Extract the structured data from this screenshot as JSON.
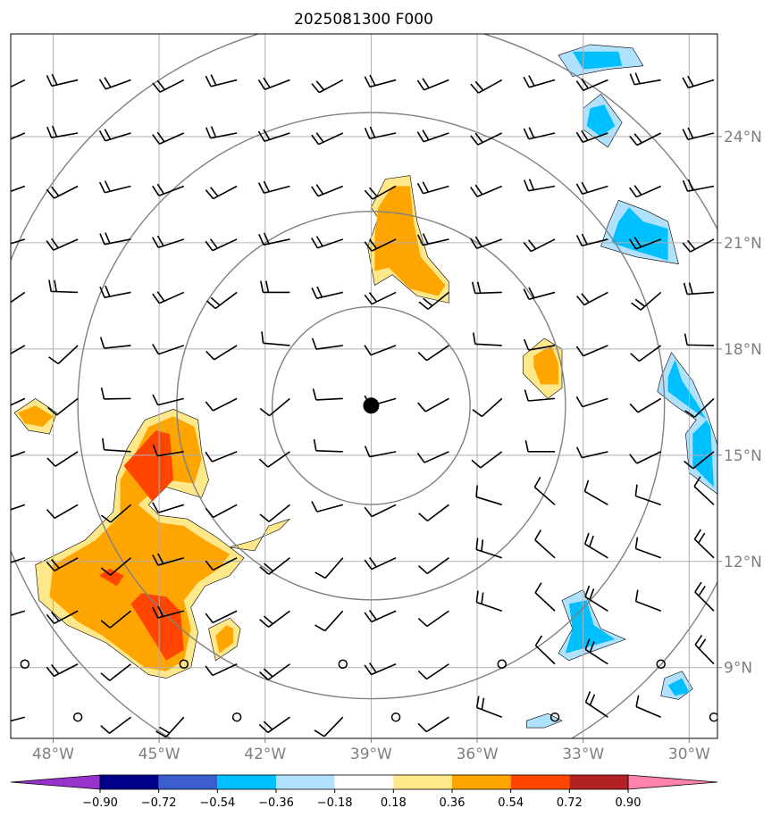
{
  "chart_data": {
    "type": "contour-map",
    "title": "2025081300 F000",
    "x_ticks": [
      {
        "lon": -48,
        "label": "48°W"
      },
      {
        "lon": -45,
        "label": "45°W"
      },
      {
        "lon": -42,
        "label": "42°W"
      },
      {
        "lon": -39,
        "label": "39°W"
      },
      {
        "lon": -36,
        "label": "36°W"
      },
      {
        "lon": -33,
        "label": "33°W"
      },
      {
        "lon": -30,
        "label": "30°W"
      }
    ],
    "y_ticks": [
      {
        "lat": 9,
        "label": "9°N"
      },
      {
        "lat": 12,
        "label": "12°N"
      },
      {
        "lat": 15,
        "label": "15°N"
      },
      {
        "lat": 18,
        "label": "18°N"
      },
      {
        "lat": 21,
        "label": "21°N"
      },
      {
        "lat": 24,
        "label": "24°N"
      }
    ],
    "lon_range": [
      -49.2,
      -29.2
    ],
    "lat_range": [
      7.0,
      26.9
    ],
    "grid": true,
    "center": {
      "lon": -39.0,
      "lat": 16.4
    },
    "range_rings_deg": [
      2.8,
      5.5,
      8.3,
      11.0
    ],
    "colorbar": {
      "levels": [
        "−0.90",
        "−0.72",
        "−0.54",
        "−0.36",
        "−0.18",
        "0.18",
        "0.36",
        "0.54",
        "0.72",
        "0.90"
      ],
      "colors": [
        "#9932cc",
        "#00008b",
        "#3a5fcd",
        "#00bfff",
        "#b0e2ff",
        "#ffffff",
        "#ffe88a",
        "#ffa500",
        "#ff4500",
        "#b22222",
        "#ff82ab"
      ],
      "extend": "both"
    },
    "regions": [
      {
        "level": 0.18,
        "color": "#ffe88a",
        "points": [
          [
            -46.5,
            9.7
          ],
          [
            -45.3,
            8.8
          ],
          [
            -44.8,
            8.7
          ],
          [
            -44.1,
            9.0
          ],
          [
            -43.9,
            10.0
          ],
          [
            -44.1,
            10.7
          ],
          [
            -43.7,
            11.3
          ],
          [
            -43.0,
            11.6
          ],
          [
            -42.6,
            12.1
          ],
          [
            -43.4,
            12.7
          ],
          [
            -44.2,
            13.2
          ],
          [
            -45.0,
            13.3
          ],
          [
            -45.3,
            13.6
          ],
          [
            -44.8,
            14.1
          ],
          [
            -43.8,
            13.8
          ],
          [
            -43.6,
            14.3
          ],
          [
            -43.8,
            15.1
          ],
          [
            -43.9,
            16.0
          ],
          [
            -44.6,
            16.3
          ],
          [
            -45.4,
            16.0
          ],
          [
            -45.9,
            15.2
          ],
          [
            -46.2,
            14.4
          ],
          [
            -46.3,
            13.4
          ],
          [
            -47.1,
            12.6
          ],
          [
            -48.5,
            11.9
          ],
          [
            -48.4,
            10.9
          ],
          [
            -47.6,
            10.2
          ]
        ]
      },
      {
        "level": 0.36,
        "color": "#ffa500",
        "points": [
          [
            -46.6,
            9.9
          ],
          [
            -45.4,
            9.0
          ],
          [
            -44.8,
            8.9
          ],
          [
            -44.3,
            9.2
          ],
          [
            -44.1,
            10.1
          ],
          [
            -44.3,
            10.9
          ],
          [
            -43.9,
            11.4
          ],
          [
            -43.3,
            11.8
          ],
          [
            -43.0,
            12.2
          ],
          [
            -43.7,
            12.6
          ],
          [
            -44.3,
            13.0
          ],
          [
            -45.0,
            13.1
          ],
          [
            -45.6,
            13.6
          ],
          [
            -44.8,
            14.3
          ],
          [
            -44.0,
            14.2
          ],
          [
            -43.8,
            14.9
          ],
          [
            -44.0,
            15.8
          ],
          [
            -44.6,
            16.1
          ],
          [
            -45.3,
            15.8
          ],
          [
            -45.7,
            15.0
          ],
          [
            -46.1,
            14.3
          ],
          [
            -46.1,
            13.3
          ],
          [
            -46.8,
            12.6
          ],
          [
            -48.0,
            11.9
          ],
          [
            -48.1,
            11.0
          ],
          [
            -47.3,
            10.3
          ]
        ]
      },
      {
        "level": 0.54,
        "color": "#ff4500",
        "points": [
          [
            -45.8,
            10.8
          ],
          [
            -44.8,
            9.2
          ],
          [
            -44.3,
            9.5
          ],
          [
            -44.4,
            10.6
          ],
          [
            -44.8,
            11.0
          ],
          [
            -45.5,
            11.1
          ]
        ]
      },
      {
        "level": 0.54,
        "color": "#ff4500",
        "points": [
          [
            -46.0,
            14.7
          ],
          [
            -45.2,
            13.7
          ],
          [
            -44.6,
            14.3
          ],
          [
            -44.7,
            15.6
          ],
          [
            -45.1,
            15.7
          ]
        ]
      },
      {
        "level": 0.54,
        "color": "#ff4500",
        "points": [
          [
            -46.7,
            11.6
          ],
          [
            -46.2,
            11.3
          ],
          [
            -46.0,
            11.6
          ],
          [
            -46.4,
            11.8
          ]
        ]
      },
      {
        "level": 0.18,
        "color": "#ffe88a",
        "points": [
          [
            -49.1,
            16.2
          ],
          [
            -48.5,
            16.6
          ],
          [
            -47.9,
            16.2
          ],
          [
            -48.1,
            15.6
          ],
          [
            -48.7,
            15.7
          ]
        ]
      },
      {
        "level": 0.36,
        "color": "#ffa500",
        "points": [
          [
            -49.0,
            16.2
          ],
          [
            -48.5,
            16.4
          ],
          [
            -48.0,
            16.1
          ],
          [
            -48.3,
            15.8
          ],
          [
            -48.8,
            15.9
          ]
        ]
      },
      {
        "level": 0.18,
        "color": "#ffe88a",
        "points": [
          [
            -43.0,
            12.4
          ],
          [
            -42.3,
            12.6
          ],
          [
            -41.6,
            12.9
          ],
          [
            -41.3,
            13.2
          ],
          [
            -41.9,
            13.0
          ],
          [
            -42.3,
            12.3
          ]
        ]
      },
      {
        "level": 0.18,
        "color": "#ffe88a",
        "points": [
          [
            -43.4,
            9.2
          ],
          [
            -42.8,
            9.6
          ],
          [
            -42.7,
            10.1
          ],
          [
            -43.0,
            10.4
          ],
          [
            -43.6,
            10.1
          ]
        ]
      },
      {
        "level": 0.36,
        "color": "#ffa500",
        "points": [
          [
            -43.3,
            9.4
          ],
          [
            -42.9,
            9.7
          ],
          [
            -42.9,
            10.1
          ],
          [
            -43.1,
            10.2
          ],
          [
            -43.4,
            9.9
          ]
        ]
      },
      {
        "level": 0.18,
        "color": "#ffe88a",
        "points": [
          [
            -39.0,
            22.0
          ],
          [
            -38.6,
            22.8
          ],
          [
            -37.9,
            22.9
          ],
          [
            -37.7,
            21.6
          ],
          [
            -37.4,
            20.6
          ],
          [
            -36.8,
            19.9
          ],
          [
            -36.8,
            19.3
          ],
          [
            -37.7,
            19.5
          ],
          [
            -38.4,
            20.1
          ],
          [
            -38.9,
            19.8
          ],
          [
            -39.1,
            20.9
          ],
          [
            -38.8,
            21.7
          ]
        ]
      },
      {
        "level": 0.36,
        "color": "#ffa500",
        "points": [
          [
            -38.8,
            22.0
          ],
          [
            -38.4,
            22.6
          ],
          [
            -37.9,
            22.6
          ],
          [
            -37.8,
            21.6
          ],
          [
            -37.6,
            20.6
          ],
          [
            -36.9,
            19.8
          ],
          [
            -37.1,
            19.5
          ],
          [
            -37.9,
            19.7
          ],
          [
            -38.5,
            20.3
          ],
          [
            -38.9,
            20.2
          ],
          [
            -38.9,
            21.2
          ]
        ]
      },
      {
        "level": 0.18,
        "color": "#ffe88a",
        "points": [
          [
            -34.7,
            17.8
          ],
          [
            -34.1,
            18.3
          ],
          [
            -33.6,
            18.0
          ],
          [
            -33.6,
            16.9
          ],
          [
            -34.0,
            16.6
          ],
          [
            -34.7,
            17.3
          ]
        ]
      },
      {
        "level": 0.36,
        "color": "#ffa500",
        "points": [
          [
            -34.4,
            17.8
          ],
          [
            -33.9,
            18.1
          ],
          [
            -33.7,
            17.6
          ],
          [
            -33.7,
            17.0
          ],
          [
            -34.2,
            17.0
          ],
          [
            -34.4,
            17.5
          ]
        ]
      },
      {
        "level": -0.18,
        "color": "#b0e2ff",
        "points": [
          [
            -33.7,
            26.3
          ],
          [
            -32.8,
            26.6
          ],
          [
            -31.6,
            26.5
          ],
          [
            -31.3,
            26.0
          ],
          [
            -32.3,
            25.9
          ],
          [
            -33.3,
            25.7
          ]
        ]
      },
      {
        "level": -0.36,
        "color": "#00bfff",
        "points": [
          [
            -33.3,
            26.4
          ],
          [
            -32.0,
            26.4
          ],
          [
            -31.9,
            26.0
          ],
          [
            -33.0,
            25.9
          ]
        ]
      },
      {
        "level": -0.18,
        "color": "#b0e2ff",
        "points": [
          [
            -33.0,
            24.8
          ],
          [
            -32.5,
            25.2
          ],
          [
            -31.9,
            24.4
          ],
          [
            -32.3,
            23.7
          ],
          [
            -33.0,
            24.2
          ]
        ]
      },
      {
        "level": -0.36,
        "color": "#00bfff",
        "points": [
          [
            -32.8,
            24.8
          ],
          [
            -32.4,
            24.9
          ],
          [
            -32.1,
            24.3
          ],
          [
            -32.5,
            24.0
          ],
          [
            -32.9,
            24.3
          ]
        ]
      },
      {
        "level": -0.18,
        "color": "#b0e2ff",
        "points": [
          [
            -32.3,
            21.5
          ],
          [
            -32.0,
            22.2
          ],
          [
            -31.2,
            21.9
          ],
          [
            -30.6,
            21.6
          ],
          [
            -30.3,
            20.4
          ],
          [
            -31.5,
            20.6
          ],
          [
            -32.5,
            20.9
          ]
        ]
      },
      {
        "level": -0.36,
        "color": "#00bfff",
        "points": [
          [
            -32.0,
            21.6
          ],
          [
            -31.7,
            22.0
          ],
          [
            -31.3,
            21.6
          ],
          [
            -30.6,
            21.4
          ],
          [
            -30.6,
            20.5
          ],
          [
            -31.6,
            20.8
          ],
          [
            -32.2,
            21.0
          ]
        ]
      },
      {
        "level": -0.18,
        "color": "#b0e2ff",
        "points": [
          [
            -30.8,
            17.2
          ],
          [
            -30.5,
            17.9
          ],
          [
            -29.9,
            17.1
          ],
          [
            -29.5,
            16.2
          ],
          [
            -29.2,
            15.3
          ],
          [
            -29.2,
            13.9
          ],
          [
            -30.0,
            14.5
          ],
          [
            -30.1,
            15.6
          ],
          [
            -29.8,
            16.0
          ],
          [
            -30.4,
            16.4
          ],
          [
            -30.9,
            16.8
          ]
        ]
      },
      {
        "level": -0.36,
        "color": "#00bfff",
        "points": [
          [
            -30.6,
            17.2
          ],
          [
            -30.4,
            17.7
          ],
          [
            -30.2,
            17.1
          ],
          [
            -29.8,
            16.5
          ],
          [
            -29.4,
            15.8
          ],
          [
            -29.3,
            14.1
          ],
          [
            -29.9,
            14.7
          ],
          [
            -29.9,
            15.6
          ],
          [
            -29.5,
            16.0
          ],
          [
            -30.2,
            16.5
          ],
          [
            -30.6,
            16.8
          ]
        ]
      },
      {
        "level": -0.18,
        "color": "#b0e2ff",
        "points": [
          [
            -33.6,
            10.9
          ],
          [
            -33.0,
            11.2
          ],
          [
            -32.5,
            10.1
          ],
          [
            -31.8,
            9.8
          ],
          [
            -32.9,
            9.4
          ],
          [
            -33.4,
            9.2
          ],
          [
            -33.7,
            9.4
          ],
          [
            -33.3,
            10.1
          ]
        ]
      },
      {
        "level": -0.36,
        "color": "#00bfff",
        "points": [
          [
            -33.4,
            10.8
          ],
          [
            -32.9,
            10.9
          ],
          [
            -32.7,
            10.2
          ],
          [
            -32.1,
            9.8
          ],
          [
            -32.8,
            9.6
          ],
          [
            -33.5,
            9.4
          ],
          [
            -33.3,
            10.1
          ]
        ]
      },
      {
        "level": -0.18,
        "color": "#b0e2ff",
        "points": [
          [
            -30.7,
            8.7
          ],
          [
            -30.2,
            8.9
          ],
          [
            -29.9,
            8.4
          ],
          [
            -30.3,
            8.1
          ],
          [
            -30.8,
            8.2
          ]
        ]
      },
      {
        "level": -0.36,
        "color": "#00bfff",
        "points": [
          [
            -30.6,
            8.5
          ],
          [
            -30.2,
            8.7
          ],
          [
            -30.0,
            8.3
          ],
          [
            -30.4,
            8.2
          ]
        ]
      },
      {
        "level": -0.18,
        "color": "#b0e2ff",
        "points": [
          [
            -34.6,
            7.5
          ],
          [
            -34.0,
            7.7
          ],
          [
            -33.6,
            7.5
          ],
          [
            -34.1,
            7.3
          ],
          [
            -34.6,
            7.3
          ]
        ]
      }
    ],
    "wind_barbs": {
      "lon_start": -48.8,
      "lat_start": 7.6,
      "spacing": 1.5,
      "cols": 14,
      "rows": 13
    }
  }
}
